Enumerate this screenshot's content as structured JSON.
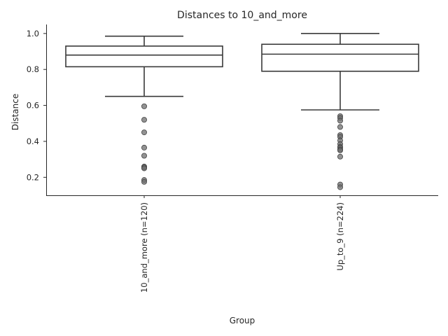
{
  "chart_data": {
    "type": "box",
    "title": "Distances to 10_and_more",
    "xlabel": "Group",
    "ylabel": "Distance",
    "categories": [
      "10_and_more (n=120)",
      "Up_to_9 (n=224)"
    ],
    "ylim": [
      0.1,
      1.05
    ],
    "yticks": [
      "0.2",
      "0.4",
      "0.6",
      "0.8",
      "1.0"
    ],
    "grid": false,
    "boxes": [
      {
        "category": "10_and_more (n=120)",
        "whisker_low": 0.65,
        "q1": 0.815,
        "median": 0.88,
        "q3": 0.93,
        "whisker_high": 0.985,
        "fliers": [
          0.595,
          0.52,
          0.45,
          0.365,
          0.32,
          0.26,
          0.255,
          0.25,
          0.185,
          0.175
        ]
      },
      {
        "category": "Up_to_9 (n=224)",
        "whisker_low": 0.575,
        "q1": 0.79,
        "median": 0.885,
        "q3": 0.94,
        "whisker_high": 1.0,
        "fliers": [
          0.54,
          0.53,
          0.515,
          0.48,
          0.435,
          0.425,
          0.405,
          0.385,
          0.37,
          0.365,
          0.355,
          0.35,
          0.315,
          0.16,
          0.145
        ]
      }
    ]
  }
}
